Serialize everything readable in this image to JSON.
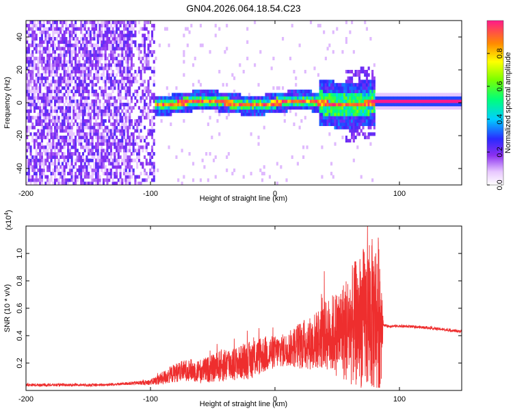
{
  "title": "GN04.2026.064.18.54.C23",
  "colors": {
    "signal": "#ee2e2e",
    "noise": "#7b2ef0",
    "background": "#ffffff"
  },
  "chart_data": [
    {
      "type": "heatmap",
      "title": "GN04.2026.064.18.54.C23",
      "xlabel": "Height of straight line (km)",
      "ylabel": "Frequency (Hz)",
      "xlim": [
        -200,
        150
      ],
      "ylim": [
        -50,
        50
      ],
      "xticks": [
        {
          "value": -200,
          "label": "-200"
        },
        {
          "value": -100,
          "label": "-100"
        },
        {
          "value": 0,
          "label": "0"
        },
        {
          "value": 100,
          "label": "100"
        }
      ],
      "yticks": [
        {
          "value": -40,
          "label": "-40"
        },
        {
          "value": -20,
          "label": "-20"
        },
        {
          "value": 0,
          "label": "0"
        },
        {
          "value": 20,
          "label": "20"
        },
        {
          "value": 40,
          "label": "40"
        }
      ],
      "colorbar": {
        "label": "Normalized spectral amplitude",
        "range": [
          0,
          1
        ],
        "ticks": [
          {
            "value": 0.0,
            "label": "0.0"
          },
          {
            "value": 0.2,
            "label": "0.2"
          },
          {
            "value": 0.4,
            "label": "0.4"
          },
          {
            "value": 0.6,
            "label": "0.6"
          },
          {
            "value": 0.8,
            "label": "0.8"
          }
        ]
      },
      "regions": [
        {
          "x_range": [
            -200,
            -97
          ],
          "description": "broadband noise",
          "amplitude": 0.15
        },
        {
          "x_range": [
            -97,
            80
          ],
          "description": "signal band near 0 Hz, spread about ±8 Hz",
          "amplitude": 0.9
        },
        {
          "x_range": [
            83,
            150
          ],
          "description": "narrow line at 0 Hz",
          "amplitude": 1.0
        }
      ]
    },
    {
      "type": "line",
      "xlabel": "Height of straight line (km)",
      "ylabel": "SNR (10 * v/v)",
      "multiplier": "(x10",
      "multiplier_exp": "4",
      "multiplier_close": ")",
      "xlim": [
        -200,
        150
      ],
      "ylim": [
        0,
        1.2
      ],
      "xticks": [
        {
          "value": -200,
          "label": "-200"
        },
        {
          "value": -100,
          "label": "-100"
        },
        {
          "value": 0,
          "label": "0"
        },
        {
          "value": 100,
          "label": "100"
        }
      ],
      "yticks": [
        {
          "value": 0.2,
          "label": "0.2"
        },
        {
          "value": 0.4,
          "label": "0.4"
        },
        {
          "value": 0.6,
          "label": "0.6"
        },
        {
          "value": 0.8,
          "label": "0.8"
        },
        {
          "value": 1.0,
          "label": "1.0"
        }
      ],
      "series": [
        {
          "name": "SNR",
          "x": [
            -200,
            -180,
            -160,
            -140,
            -120,
            -100,
            -90,
            -80,
            -70,
            -60,
            -50,
            -40,
            -30,
            -20,
            -10,
            0,
            10,
            20,
            30,
            40,
            50,
            60,
            70,
            80,
            85,
            87,
            90,
            100,
            120,
            140,
            150
          ],
          "y": [
            0.04,
            0.04,
            0.04,
            0.04,
            0.05,
            0.06,
            0.09,
            0.13,
            0.15,
            0.14,
            0.16,
            0.19,
            0.2,
            0.22,
            0.26,
            0.28,
            0.3,
            0.33,
            0.35,
            0.4,
            0.42,
            0.46,
            0.52,
            0.55,
            0.55,
            0.48,
            0.47,
            0.47,
            0.46,
            0.44,
            0.43
          ],
          "amplitude": [
            0.01,
            0.01,
            0.01,
            0.01,
            0.01,
            0.02,
            0.05,
            0.07,
            0.08,
            0.09,
            0.1,
            0.13,
            0.12,
            0.14,
            0.14,
            0.12,
            0.12,
            0.18,
            0.2,
            0.25,
            0.32,
            0.42,
            0.52,
            0.58,
            0.6,
            0.01,
            0.01,
            0.01,
            0.01,
            0.01,
            0.01
          ]
        }
      ]
    }
  ]
}
